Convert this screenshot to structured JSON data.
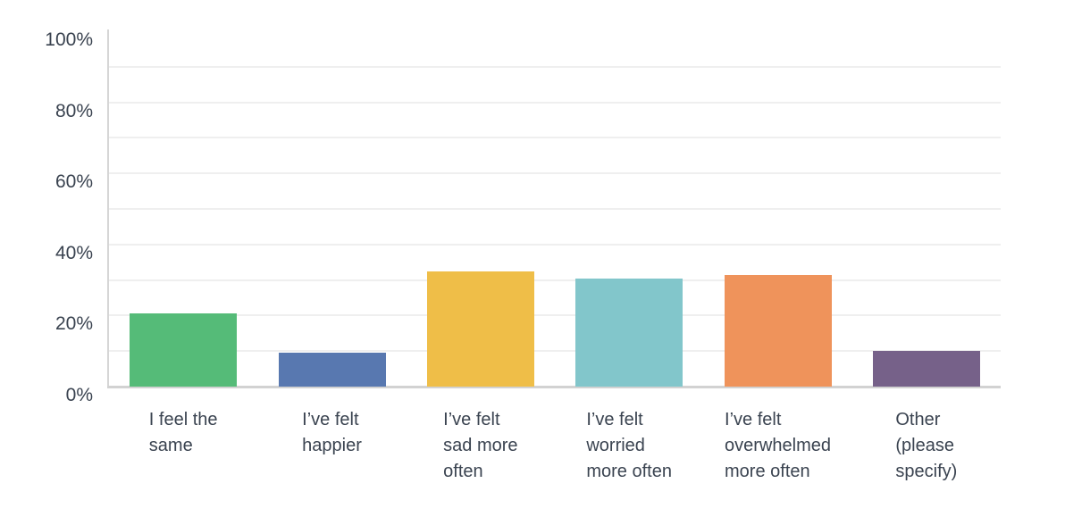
{
  "chart_data": {
    "type": "bar",
    "categories": [
      "I feel the same",
      "I’ve felt happier",
      "I’ve felt sad more often",
      "I’ve felt worried more often",
      "I’ve felt overwhelmed more often",
      "Other (please specify)"
    ],
    "category_label_lines": [
      [
        "I feel the",
        "same"
      ],
      [
        "I’ve felt",
        "happier"
      ],
      [
        "I’ve felt",
        "sad more",
        "often"
      ],
      [
        "I’ve felt",
        "worried",
        "more often"
      ],
      [
        "I’ve felt",
        "overwhelmed",
        "more often"
      ],
      [
        "Other",
        "(please",
        "specify)"
      ]
    ],
    "values": [
      20.5,
      9.5,
      32.5,
      30.5,
      31.5,
      10
    ],
    "unit": "%",
    "bar_colors": [
      "#55BB78",
      "#5878B0",
      "#EFBE48",
      "#82C6CB",
      "#EF935B",
      "#766189"
    ],
    "y_ticks": [
      0,
      20,
      40,
      60,
      80,
      100
    ],
    "y_tick_labels": [
      "0%",
      "20%",
      "40%",
      "60%",
      "80%",
      "100%"
    ],
    "ylim": [
      0,
      100
    ],
    "grid_step": 10,
    "grid": true,
    "legend": false
  },
  "style": {
    "text_color": "#3A4350",
    "gridline_color": "#EFEFEF",
    "axis_color": "#D4D4D4",
    "background": "#FFFFFF"
  }
}
